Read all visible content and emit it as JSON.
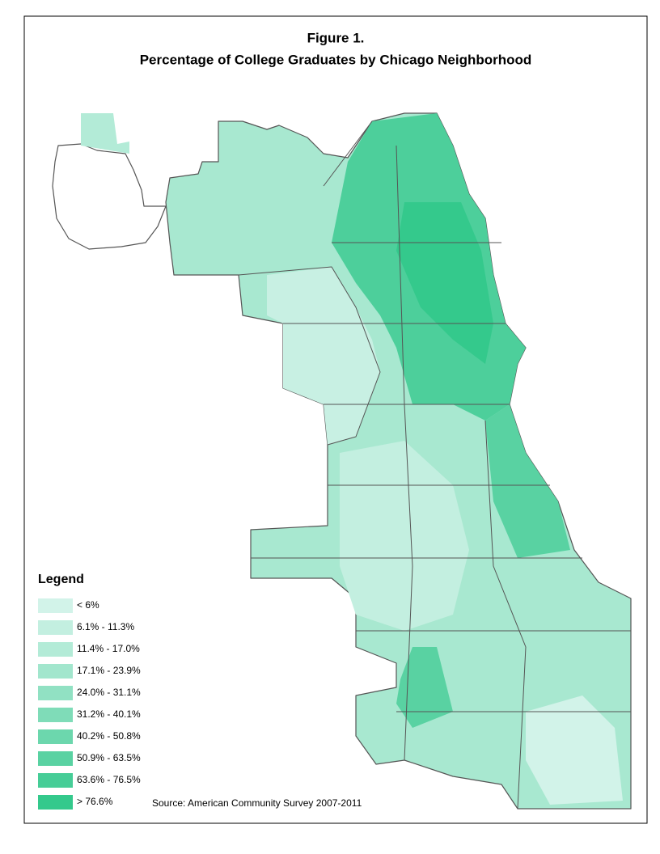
{
  "header": {
    "title": "Figure 1.",
    "subtitle": "Percentage of College Graduates by Chicago Neighborhood"
  },
  "legend": {
    "title": "Legend",
    "items": [
      {
        "label": "< 6%",
        "color": "#d2f3e9"
      },
      {
        "label": "6.1% - 11.3%",
        "color": "#c3efe0"
      },
      {
        "label": "11.4% - 17.0%",
        "color": "#b3ebd7"
      },
      {
        "label": "17.1% - 23.9%",
        "color": "#a2e6cd"
      },
      {
        "label": "24.0% - 31.1%",
        "color": "#91e1c3"
      },
      {
        "label": "31.2% - 40.1%",
        "color": "#7fdcb8"
      },
      {
        "label": "40.2% - 50.8%",
        "color": "#6cd7ad"
      },
      {
        "label": "50.9% - 63.5%",
        "color": "#59d2a2"
      },
      {
        "label": "63.6% - 76.5%",
        "color": "#46cd97"
      },
      {
        "label": "> 76.6%",
        "color": "#34c98c"
      }
    ]
  },
  "source": "Source: American Community Survey 2007-2011"
}
